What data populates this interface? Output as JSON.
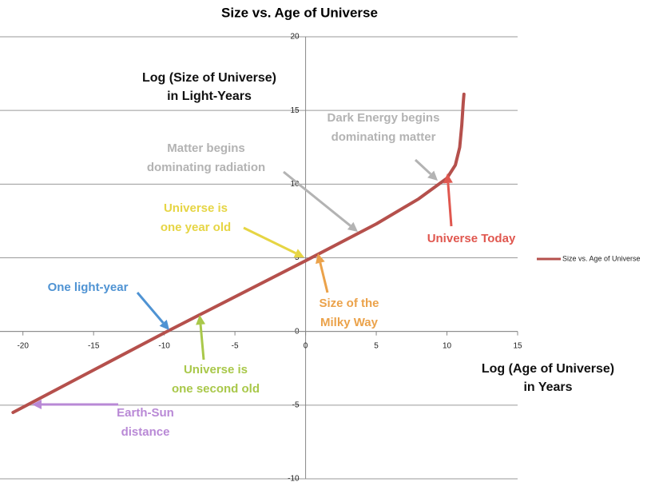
{
  "chart_data": {
    "type": "line",
    "title": "Size vs. Age of Universe",
    "xlabel": [
      "Log (Age of Universe)",
      "in Years"
    ],
    "ylabel": [
      "Log (Size of Universe)",
      "in Light-Years"
    ],
    "x": [
      -20.7,
      -10,
      0,
      5,
      8,
      10,
      10.6,
      10.9,
      11.05,
      11.15,
      11.2
    ],
    "series": [
      {
        "name": "Size vs. Age of Universe",
        "color": "#b5504c",
        "values": [
          -5.5,
          -0.1,
          4.8,
          7.3,
          9,
          10.4,
          11.3,
          12.5,
          14,
          15.5,
          16.1
        ]
      }
    ],
    "xlim": [
      -21,
      15
    ],
    "ylim": [
      -10,
      20
    ],
    "xticks": [
      -20,
      -15,
      -10,
      -5,
      0,
      5,
      10,
      15
    ],
    "yticks": [
      -10,
      -5,
      0,
      5,
      10,
      15,
      20
    ],
    "grid": true,
    "legend": "right",
    "annotations": [
      {
        "lines": [
          "Dark Energy begins",
          "dominating matter"
        ],
        "color": "#b3b3b3"
      },
      {
        "lines": [
          "Matter begins",
          "dominating radiation"
        ],
        "color": "#b3b3b3"
      },
      {
        "lines": [
          "Universe is",
          "one year old"
        ],
        "color": "#e6d544"
      },
      {
        "lines": [
          "Universe Today"
        ],
        "color": "#e0574f"
      },
      {
        "lines": [
          "One light-year"
        ],
        "color": "#4f93d3"
      },
      {
        "lines": [
          "Size of the",
          "Milky Way"
        ],
        "color": "#eba24a"
      },
      {
        "lines": [
          "Universe is",
          "one second old"
        ],
        "color": "#a9c84a"
      },
      {
        "lines": [
          "Earth-Sun",
          "distance"
        ],
        "color": "#b989d6"
      }
    ]
  }
}
